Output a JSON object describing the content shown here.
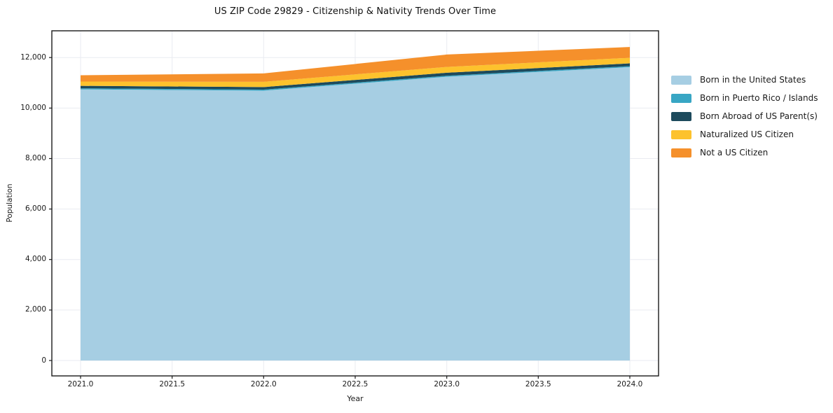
{
  "figure": {
    "title": "US ZIP Code 29829 - Citizenship & Nativity Trends Over Time",
    "xlabel": "Year",
    "ylabel": "Population"
  },
  "legend": {
    "position": "right-outside",
    "items": [
      {
        "label": "Born in the United States",
        "color": "#a6cee3"
      },
      {
        "label": "Born in Puerto Rico / Islands",
        "color": "#38a6c4"
      },
      {
        "label": "Born Abroad of US Parent(s)",
        "color": "#1d4a5c"
      },
      {
        "label": "Naturalized US Citizen",
        "color": "#fdc22d"
      },
      {
        "label": "Not a US Citizen",
        "color": "#f5902b"
      }
    ]
  },
  "chart_data": {
    "type": "area",
    "stacked": true,
    "title": "US ZIP Code 29829 - Citizenship & Nativity Trends Over Time",
    "xlabel": "Year",
    "ylabel": "Population",
    "x": [
      2021,
      2022,
      2023,
      2024
    ],
    "series": [
      {
        "name": "Born in the United States",
        "color": "#a6cee3",
        "values": [
          10740,
          10690,
          11240,
          11620
        ]
      },
      {
        "name": "Born in Puerto Rico / Islands",
        "color": "#38a6c4",
        "values": [
          40,
          40,
          40,
          40
        ]
      },
      {
        "name": "Born Abroad of US Parent(s)",
        "color": "#1d4a5c",
        "values": [
          100,
          100,
          120,
          110
        ]
      },
      {
        "name": "Naturalized US Citizen",
        "color": "#fdc22d",
        "values": [
          170,
          210,
          230,
          220
        ]
      },
      {
        "name": "Not a US Citizen",
        "color": "#f5902b",
        "values": [
          250,
          330,
          490,
          430
        ]
      }
    ],
    "totals": [
      11300,
      11370,
      12120,
      12420
    ],
    "x_ticks": [
      "2021.0",
      "2021.5",
      "2022.0",
      "2022.5",
      "2023.0",
      "2023.5",
      "2024.0"
    ],
    "x_tick_values": [
      2021,
      2021.5,
      2022,
      2022.5,
      2023,
      2023.5,
      2024
    ],
    "y_ticks": [
      "0",
      "2,000",
      "4,000",
      "6,000",
      "8,000",
      "10,000",
      "12,000"
    ],
    "y_tick_values": [
      0,
      2000,
      4000,
      6000,
      8000,
      10000,
      12000
    ],
    "xlim": [
      2020.843,
      2024.157
    ],
    "ylim": [
      -610,
      13060
    ],
    "grid": true,
    "legend_position": "right-outside"
  }
}
